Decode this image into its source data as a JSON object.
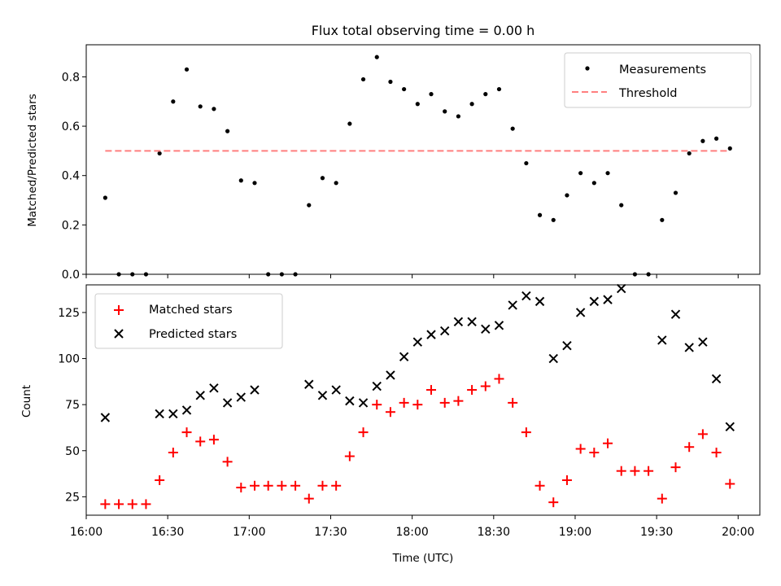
{
  "chart_data": [
    {
      "type": "scatter",
      "title": "Flux total observing time = 0.00 h",
      "xlabel": "",
      "ylabel": "Matched/Predicted stars",
      "xlim": [
        "16:00",
        "20:08"
      ],
      "ylim": [
        0,
        0.93
      ],
      "yticks": [
        0.0,
        0.2,
        0.4,
        0.6,
        0.8
      ],
      "ytick_labels": [
        "0.0",
        "0.2",
        "0.4",
        "0.6",
        "0.8"
      ],
      "xticks": [
        "16:00",
        "16:30",
        "17:00",
        "17:30",
        "18:00",
        "18:30",
        "19:00",
        "19:30",
        "20:00"
      ],
      "xtick_labels_visible": false,
      "legend": {
        "placement": "top-right",
        "entries": [
          "Measurements",
          "Threshold"
        ]
      },
      "series": [
        {
          "name": "Measurements",
          "marker": "dot",
          "color": "#000000",
          "x": [
            "16:07",
            "16:12",
            "16:17",
            "16:22",
            "16:27",
            "16:32",
            "16:37",
            "16:42",
            "16:47",
            "16:52",
            "16:57",
            "17:02",
            "17:07",
            "17:12",
            "17:17",
            "17:22",
            "17:27",
            "17:32",
            "17:37",
            "17:42",
            "17:47",
            "17:52",
            "17:57",
            "18:02",
            "18:07",
            "18:12",
            "18:17",
            "18:22",
            "18:27",
            "18:32",
            "18:37",
            "18:42",
            "18:47",
            "18:52",
            "18:57",
            "19:02",
            "19:07",
            "19:12",
            "19:17",
            "19:22",
            "19:27",
            "19:32",
            "19:37",
            "19:42",
            "19:47",
            "19:52",
            "19:57"
          ],
          "y": [
            0.31,
            0.0,
            0.0,
            0.0,
            0.49,
            0.7,
            0.83,
            0.68,
            0.67,
            0.58,
            0.38,
            0.37,
            0.0,
            0.0,
            0.0,
            0.28,
            0.39,
            0.37,
            0.61,
            0.79,
            0.88,
            0.78,
            0.75,
            0.69,
            0.73,
            0.66,
            0.64,
            0.69,
            0.73,
            0.75,
            0.59,
            0.45,
            0.24,
            0.22,
            0.32,
            0.41,
            0.37,
            0.41,
            0.28,
            0.0,
            0.0,
            0.22,
            0.33,
            0.49,
            0.54,
            0.55,
            0.51
          ]
        },
        {
          "name": "Threshold",
          "line": "dashed",
          "color": "#ff7f7f",
          "x": [
            "16:07",
            "19:57"
          ],
          "y": [
            0.5,
            0.5
          ]
        }
      ]
    },
    {
      "type": "scatter",
      "title": "",
      "xlabel": "Time (UTC)",
      "ylabel": "Count",
      "xlim": [
        "16:00",
        "20:08"
      ],
      "ylim": [
        15,
        140
      ],
      "yticks": [
        25,
        50,
        75,
        100,
        125
      ],
      "ytick_labels": [
        "25",
        "50",
        "75",
        "100",
        "125"
      ],
      "xticks": [
        "16:00",
        "16:30",
        "17:00",
        "17:30",
        "18:00",
        "18:30",
        "19:00",
        "19:30",
        "20:00"
      ],
      "legend": {
        "placement": "top-left",
        "entries": [
          "Matched stars",
          "Predicted stars"
        ]
      },
      "series": [
        {
          "name": "Matched stars",
          "marker": "plus",
          "color": "#ff0000",
          "x": [
            "16:07",
            "16:12",
            "16:17",
            "16:22",
            "16:27",
            "16:32",
            "16:37",
            "16:42",
            "16:47",
            "16:52",
            "16:57",
            "17:02",
            "17:07",
            "17:12",
            "17:17",
            "17:22",
            "17:27",
            "17:32",
            "17:37",
            "17:42",
            "17:47",
            "17:52",
            "17:57",
            "18:02",
            "18:07",
            "18:12",
            "18:17",
            "18:22",
            "18:27",
            "18:32",
            "18:37",
            "18:42",
            "18:47",
            "18:52",
            "18:57",
            "19:02",
            "19:07",
            "19:12",
            "19:17",
            "19:22",
            "19:27",
            "19:32",
            "19:37",
            "19:42",
            "19:47",
            "19:52",
            "19:57"
          ],
          "y": [
            21,
            21,
            21,
            21,
            34,
            49,
            60,
            55,
            56,
            44,
            30,
            31,
            31,
            31,
            31,
            24,
            31,
            31,
            47,
            60,
            75,
            71,
            76,
            75,
            83,
            76,
            77,
            83,
            85,
            89,
            76,
            60,
            31,
            22,
            34,
            51,
            49,
            54,
            39,
            39,
            39,
            24,
            41,
            52,
            59,
            49,
            32
          ]
        },
        {
          "name": "Predicted stars",
          "marker": "x",
          "color": "#000000",
          "x": [
            "16:07",
            "16:27",
            "16:32",
            "16:37",
            "16:42",
            "16:47",
            "16:52",
            "16:57",
            "17:02",
            "17:22",
            "17:27",
            "17:32",
            "17:37",
            "17:42",
            "17:47",
            "17:52",
            "17:57",
            "18:02",
            "18:07",
            "18:12",
            "18:17",
            "18:22",
            "18:27",
            "18:32",
            "18:37",
            "18:42",
            "18:47",
            "18:52",
            "18:57",
            "19:02",
            "19:07",
            "19:12",
            "19:17",
            "19:32",
            "19:37",
            "19:42",
            "19:47",
            "19:52",
            "19:57"
          ],
          "y": [
            68,
            70,
            70,
            72,
            80,
            84,
            76,
            79,
            83,
            86,
            80,
            83,
            77,
            76,
            85,
            91,
            101,
            109,
            113,
            115,
            120,
            120,
            116,
            118,
            129,
            134,
            131,
            100,
            107,
            125,
            131,
            132,
            138,
            110,
            124,
            106,
            109,
            89,
            63
          ]
        }
      ]
    }
  ]
}
